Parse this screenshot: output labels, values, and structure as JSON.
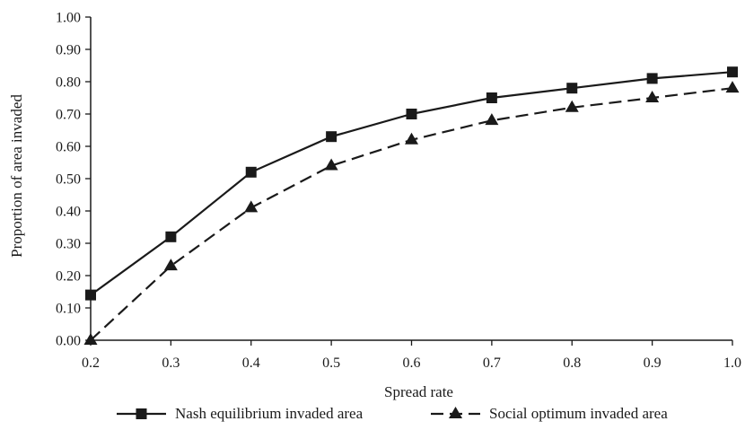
{
  "chart_data": {
    "type": "line",
    "title": "",
    "xlabel": "Spread rate",
    "ylabel": "Proportion of area invaded",
    "x": [
      0.2,
      0.3,
      0.4,
      0.5,
      0.6,
      0.7,
      0.8,
      0.9,
      1.0
    ],
    "x_tick_labels": [
      "0.2",
      "0.3",
      "0.4",
      "0.5",
      "0.6",
      "0.7",
      "0.8",
      "0.9",
      "1.0"
    ],
    "y_tick_labels": [
      "0.00",
      "0.10",
      "0.20",
      "0.30",
      "0.40",
      "0.50",
      "0.60",
      "0.70",
      "0.80",
      "0.90",
      "1.00"
    ],
    "xlim": [
      0.2,
      1.0
    ],
    "ylim": [
      0,
      1.0
    ],
    "grid": false,
    "legend_position": "bottom",
    "series": [
      {
        "name": "Nash equilibrium invaded area",
        "values": [
          0.14,
          0.32,
          0.52,
          0.63,
          0.7,
          0.75,
          0.78,
          0.81,
          0.83
        ],
        "marker": "square",
        "line_style": "solid",
        "color": "#1a1a1a"
      },
      {
        "name": "Social optimum invaded area",
        "values": [
          0.0,
          0.23,
          0.41,
          0.54,
          0.62,
          0.68,
          0.72,
          0.75,
          0.78
        ],
        "marker": "triangle",
        "line_style": "dashed",
        "color": "#1a1a1a"
      }
    ]
  }
}
